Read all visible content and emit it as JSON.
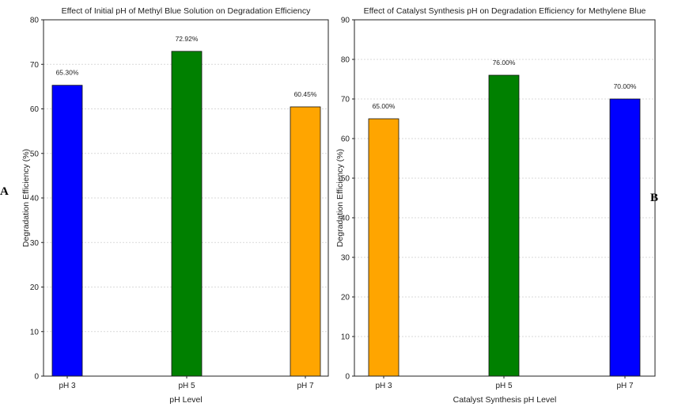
{
  "panels": [
    {
      "letter": "A"
    },
    {
      "letter": "B"
    }
  ],
  "chart_data": [
    {
      "type": "bar",
      "title": "Effect of Initial pH of Methyl Blue Solution on Degradation Efficiency",
      "xlabel": "pH Level",
      "ylabel": "Degradation Efficiency (%)",
      "categories": [
        "pH 3",
        "pH 5",
        "pH 7"
      ],
      "values": [
        65.3,
        72.92,
        60.45
      ],
      "data_labels": [
        "65.30%",
        "72.92%",
        "60.45%"
      ],
      "colors": [
        "#0000ff",
        "#008000",
        "#ffa500"
      ],
      "ylim": [
        0,
        80
      ],
      "yticks": [
        0,
        10,
        20,
        30,
        40,
        50,
        60,
        70,
        80
      ],
      "grid": true
    },
    {
      "type": "bar",
      "title": "Effect of Catalyst Synthesis pH on Degradation Efficiency for Methylene Blue",
      "xlabel": "Catalyst Synthesis pH Level",
      "ylabel": "Degradation Efficiency (%)",
      "categories": [
        "pH 3",
        "pH 5",
        "pH 7"
      ],
      "values": [
        65.0,
        76.0,
        70.0
      ],
      "data_labels": [
        "65.00%",
        "76.00%",
        "70.00%"
      ],
      "colors": [
        "#ffa500",
        "#008000",
        "#0000ff"
      ],
      "ylim": [
        0,
        90
      ],
      "yticks": [
        0,
        10,
        20,
        30,
        40,
        50,
        60,
        70,
        80,
        90
      ],
      "grid": true
    }
  ]
}
